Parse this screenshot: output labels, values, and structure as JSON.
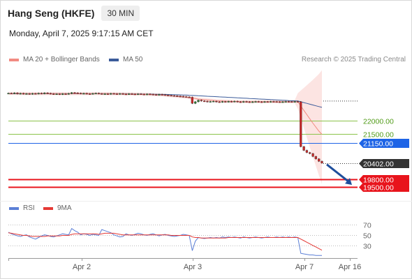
{
  "header": {
    "title": "Hang Seng (HKFE)",
    "timeframe": "30 MIN",
    "datetime": "Monday, April 7, 2025 9:17:15 AM CET"
  },
  "legend": {
    "items": [
      {
        "label": "MA 20 + Bollinger Bands",
        "color": "#f28b82"
      },
      {
        "label": "MA 50",
        "color": "#3b5b9a"
      }
    ],
    "credit": "Research © 2025 Trading Central"
  },
  "rsi_legend": {
    "items": [
      {
        "label": "RSI",
        "color": "#5b7fd6"
      },
      {
        "label": "9MA",
        "color": "#e53935"
      }
    ]
  },
  "chart_data": {
    "type": "line",
    "x_ticks": [
      "Apr 2",
      "Apr 3",
      "Apr 7",
      "Apr 16"
    ],
    "price_axis": {
      "min": 19300,
      "max": 23900
    },
    "levels": [
      {
        "label": "22000.00",
        "value": 22000,
        "kind": "resistance",
        "color": "#8bc34a",
        "text_color": "#4f9a16"
      },
      {
        "label": "21500.00",
        "value": 21500,
        "kind": "resistance",
        "color": "#8bc34a",
        "text_color": "#4f9a16"
      },
      {
        "label": "21150.00",
        "value": 21150,
        "kind": "pivot",
        "color": "#1e64e6",
        "text_color": "#ffffff"
      },
      {
        "label": "20402.00",
        "value": 20402,
        "kind": "last",
        "color": "#333333",
        "text_color": "#ffffff"
      },
      {
        "label": "19800.00",
        "value": 19800,
        "kind": "support",
        "color": "#e8141c",
        "text_color": "#ffffff"
      },
      {
        "label": "19500.00",
        "value": 19500,
        "kind": "support",
        "color": "#e8141c",
        "text_color": "#ffffff"
      }
    ],
    "price_series": [
      23020,
      23010,
      23030,
      23000,
      23015,
      22995,
      23005,
      22990,
      23010,
      23000,
      23020,
      23005,
      23030,
      23015,
      23000,
      22985,
      22995,
      22980,
      23000,
      22990,
      23010,
      23040,
      23030,
      23020,
      23005,
      23015,
      23000,
      22995,
      23010,
      23020,
      23005,
      22995,
      23000,
      22990,
      23010,
      23000,
      22995,
      23005,
      22990,
      22985,
      23000,
      22990,
      22980,
      22995,
      22985,
      22975,
      22990,
      22980,
      22970,
      22960,
      22975,
      22965,
      22950,
      22940,
      22930,
      22920,
      22910,
      22900,
      22890,
      22880,
      22870,
      22640,
      22700,
      22760,
      22730,
      22720,
      22700,
      22710,
      22720,
      22700,
      22690,
      22710,
      22700,
      22715,
      22705,
      22720,
      22700,
      22690,
      22710,
      22700,
      22690,
      22700,
      22710,
      22700,
      22690,
      22705,
      22700,
      22710,
      22705,
      22700,
      22695,
      22700,
      22710,
      22705,
      22700,
      22710,
      22700,
      21020,
      20880,
      20800,
      20760,
      20650,
      20560,
      20470,
      20402
    ],
    "ma20_series": [
      23010,
      23010,
      23010,
      23008,
      23008,
      23006,
      23006,
      23005,
      23005,
      23004,
      23004,
      23004,
      23005,
      23006,
      23006,
      23006,
      23005,
      23004,
      23003,
      23002,
      23002,
      23003,
      23004,
      23005,
      23006,
      23007,
      23007,
      23006,
      23006,
      23006,
      23006,
      23005,
      23004,
      23003,
      23002,
      23001,
      23000,
      22999,
      22998,
      22996,
      22994,
      22992,
      22990,
      22988,
      22986,
      22984,
      22980,
      22975,
      22970,
      22965,
      22960,
      22955,
      22945,
      22935,
      22925,
      22915,
      22905,
      22895,
      22885,
      22870,
      22855,
      22840,
      22820,
      22800,
      22790,
      22780,
      22770,
      22760,
      22750,
      22740,
      22735,
      22730,
      22725,
      22720,
      22716,
      22713,
      22710,
      22708,
      22706,
      22705,
      22704,
      22703,
      22703,
      22702,
      22702,
      22702,
      22702,
      22702,
      22702,
      22702,
      22702,
      22702,
      22702,
      22702,
      22702,
      22702,
      22702,
      22540,
      22380,
      22220,
      22060,
      21900,
      21750,
      21600,
      21480
    ],
    "ma50_series": [
      23000,
      23000,
      23000,
      23000,
      23000,
      23000,
      23000,
      23000,
      23000,
      23000,
      23000,
      23000,
      23000,
      23000,
      23000,
      23000,
      23000,
      23000,
      23000,
      23000,
      23000,
      23000,
      23000,
      23000,
      23000,
      23000,
      23000,
      23000,
      23000,
      23000,
      23000,
      23000,
      23000,
      23000,
      23000,
      23000,
      23000,
      23000,
      23000,
      23000,
      22998,
      22996,
      22994,
      22992,
      22990,
      22988,
      22986,
      22984,
      22982,
      22980,
      22978,
      22976,
      22974,
      22972,
      22970,
      22966,
      22962,
      22958,
      22954,
      22950,
      22944,
      22938,
      22932,
      22926,
      22920,
      22914,
      22908,
      22902,
      22896,
      22890,
      22884,
      22878,
      22872,
      22866,
      22860,
      22854,
      22848,
      22842,
      22836,
      22830,
      22824,
      22818,
      22812,
      22806,
      22800,
      22794,
      22788,
      22782,
      22776,
      22770,
      22764,
      22758,
      22752,
      22746,
      22740,
      22734,
      22728,
      22700,
      22670,
      22640,
      22610,
      22580,
      22550,
      22520,
      22490
    ],
    "rsi_axis": {
      "min": 10,
      "max": 80,
      "ticks": [
        "70",
        "50",
        "30"
      ]
    },
    "rsi_series": [
      55,
      52,
      50,
      48,
      47,
      49,
      50,
      46,
      44,
      42,
      45,
      48,
      50,
      49,
      47,
      46,
      48,
      50,
      52,
      51,
      50,
      62,
      58,
      55,
      50,
      52,
      51,
      49,
      51,
      50,
      49,
      60,
      58,
      56,
      54,
      50,
      48,
      46,
      47,
      52,
      50,
      49,
      51,
      53,
      52,
      50,
      49,
      51,
      52,
      50,
      48,
      50,
      51,
      49,
      48,
      47,
      48,
      49,
      51,
      50,
      49,
      20,
      38,
      45,
      44,
      43,
      44,
      45,
      44,
      45,
      44,
      46,
      45,
      46,
      45,
      46,
      45,
      44,
      46,
      45,
      44,
      45,
      46,
      45,
      44,
      45,
      46,
      45,
      45,
      46,
      45,
      46,
      45,
      46,
      45,
      46,
      45,
      15,
      14,
      13,
      12,
      12,
      11,
      11,
      11
    ],
    "rsi_ma_series": [
      54,
      53,
      52,
      51,
      50,
      49,
      49,
      48,
      47,
      47,
      47,
      47,
      47,
      48,
      48,
      48,
      48,
      48,
      49,
      49,
      49,
      51,
      52,
      52,
      52,
      52,
      52,
      52,
      52,
      52,
      51,
      52,
      53,
      53,
      53,
      53,
      52,
      51,
      50,
      50,
      50,
      50,
      50,
      50,
      50,
      50,
      50,
      50,
      50,
      50,
      50,
      50,
      50,
      50,
      49,
      49,
      49,
      49,
      49,
      49,
      49,
      46,
      45,
      45,
      44,
      44,
      44,
      44,
      44,
      44,
      44,
      44,
      44,
      45,
      45,
      45,
      45,
      45,
      45,
      45,
      45,
      45,
      45,
      45,
      45,
      45,
      45,
      45,
      45,
      45,
      45,
      45,
      45,
      45,
      45,
      45,
      45,
      42,
      39,
      36,
      33,
      30,
      27,
      24,
      21
    ]
  }
}
